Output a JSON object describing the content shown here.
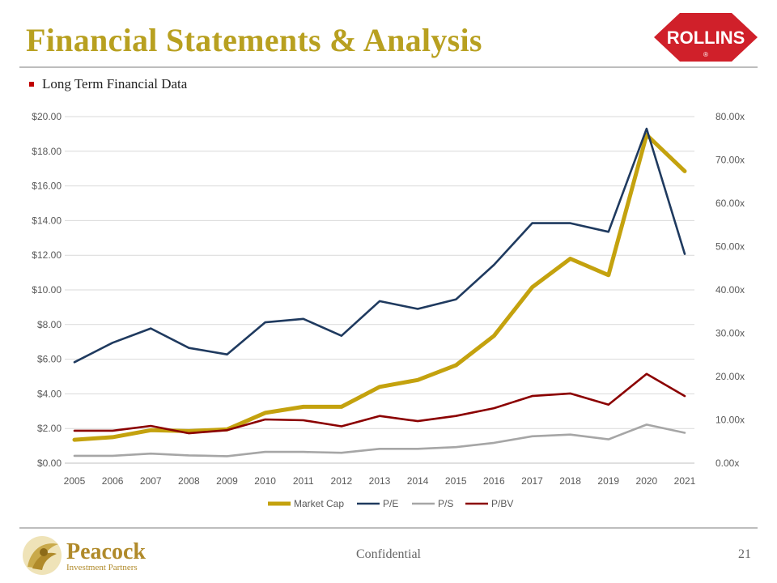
{
  "header": {
    "title": "Financial Statements & Analysis",
    "logo_text": "ROLLINS",
    "logo_mark": "®",
    "logo_color": "#D0202A"
  },
  "bullet": {
    "text": "Long Term Financial Data",
    "color": "#C00000"
  },
  "chart_data": {
    "type": "line",
    "categories": [
      "2005",
      "2006",
      "2007",
      "2008",
      "2009",
      "2010",
      "2011",
      "2012",
      "2013",
      "2014",
      "2015",
      "2016",
      "2017",
      "2018",
      "2019",
      "2020",
      "2021"
    ],
    "left_axis": {
      "ylim": [
        0,
        20
      ],
      "ticks": [
        0,
        2,
        4,
        6,
        8,
        10,
        12,
        14,
        16,
        18,
        20
      ],
      "tick_labels": [
        "$0.00",
        "$2.00",
        "$4.00",
        "$6.00",
        "$8.00",
        "$10.00",
        "$12.00",
        "$14.00",
        "$16.00",
        "$18.00",
        "$20.00"
      ]
    },
    "right_axis": {
      "ylim": [
        0,
        80
      ],
      "ticks": [
        0,
        10,
        20,
        30,
        40,
        50,
        60,
        70,
        80
      ],
      "tick_labels": [
        "0.00x",
        "10.00x",
        "20.00x",
        "30.00x",
        "40.00x",
        "50.00x",
        "60.00x",
        "70.00x",
        "80.00x"
      ]
    },
    "grid": true,
    "legend_position": "bottom",
    "series": [
      {
        "name": "Market Cap",
        "axis": "left",
        "color": "#C4A20E",
        "width": 5,
        "values": [
          1.35,
          1.5,
          1.9,
          1.85,
          1.95,
          2.9,
          3.25,
          3.25,
          4.4,
          4.8,
          5.65,
          7.35,
          10.15,
          11.8,
          10.85,
          18.95,
          16.85
        ]
      },
      {
        "name": "P/E",
        "axis": "right",
        "color": "#1F3A5F",
        "width": 2.6,
        "values": [
          23.3,
          27.8,
          31.1,
          26.6,
          25.1,
          32.5,
          33.3,
          29.4,
          37.4,
          35.6,
          37.8,
          45.8,
          55.4,
          55.4,
          53.4,
          77.2,
          48.3
        ]
      },
      {
        "name": "P/S",
        "axis": "right",
        "color": "#A6A6A6",
        "width": 2.6,
        "values": [
          1.7,
          1.7,
          2.2,
          1.8,
          1.6,
          2.6,
          2.6,
          2.4,
          3.3,
          3.3,
          3.7,
          4.7,
          6.2,
          6.6,
          5.5,
          8.9,
          7.0
        ]
      },
      {
        "name": "P/BV",
        "axis": "right",
        "color": "#8B0000",
        "width": 2.6,
        "values": [
          7.5,
          7.5,
          8.6,
          6.9,
          7.6,
          10.1,
          9.9,
          8.5,
          10.9,
          9.7,
          10.9,
          12.7,
          15.5,
          16.1,
          13.5,
          20.6,
          15.5
        ]
      }
    ]
  },
  "footer": {
    "brand": "Peacock",
    "brand_sub": "Investment Partners",
    "confidential": "Confidential",
    "page": "21"
  }
}
